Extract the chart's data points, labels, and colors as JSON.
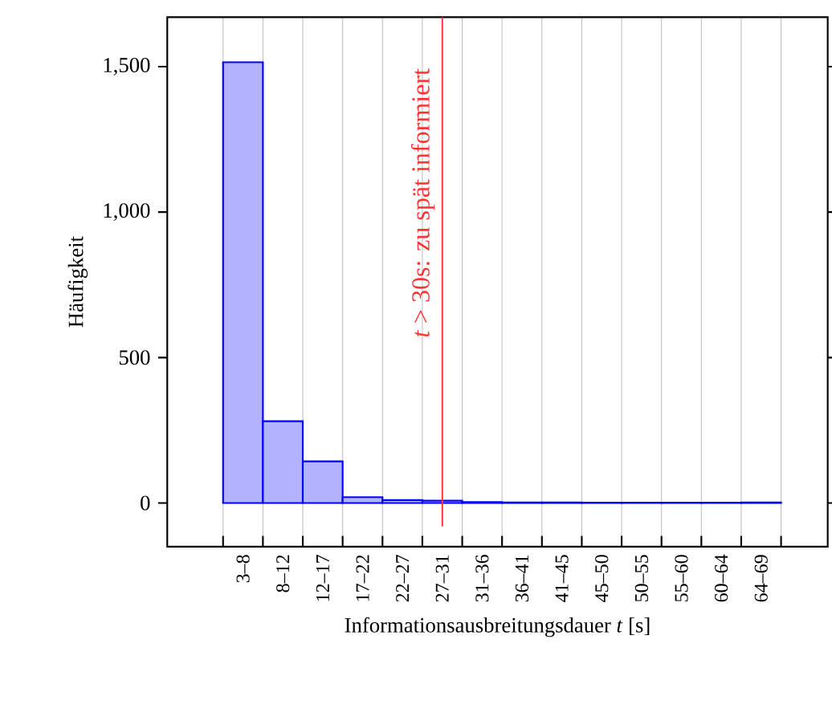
{
  "chart_data": {
    "type": "bar",
    "xlabel": "Informationsausbreitungsdauer *t* [s]",
    "ylabel": "Häufigkeit",
    "categories": [
      "3–8",
      "8–12",
      "12–17",
      "17–22",
      "22–27",
      "27–31",
      "31–36",
      "36–41",
      "41–45",
      "45–50",
      "50–55",
      "55–60",
      "60–64",
      "64–69"
    ],
    "values": [
      1515,
      281,
      143,
      20,
      10,
      8,
      3,
      2,
      2,
      1,
      1,
      1,
      1,
      2
    ],
    "color": "#0000ff",
    "ylim": [
      -150,
      1670
    ],
    "yticks": [
      0,
      500,
      {
        "value": 1000,
        "label": "1,000"
      },
      {
        "value": 1500,
        "label": "1,500"
      }
    ],
    "grid": "x",
    "ref_lines": [
      {
        "axis": "x",
        "value": "27–31",
        "label": "*t* > 30s: zu spät informiert",
        "color": "#ff3333"
      }
    ]
  }
}
